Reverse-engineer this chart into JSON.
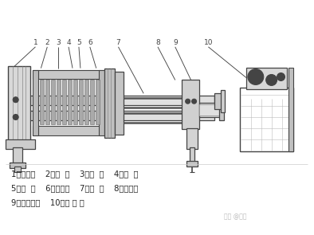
{
  "bg_color": "#ffffff",
  "line_color": "#444444",
  "lw": 0.8,
  "label_line1": "1、止推板    2、头  板    3、滤  板    4、滤  布",
  "label_line2": "5、尾  板    6、压紧板    7、横  梁    8、液压缸",
  "label_line3": "9、液压缸座    10、液 压 站",
  "watermark": "知乎 @文文",
  "fig_width": 3.94,
  "fig_height": 2.95,
  "dpi": 100
}
